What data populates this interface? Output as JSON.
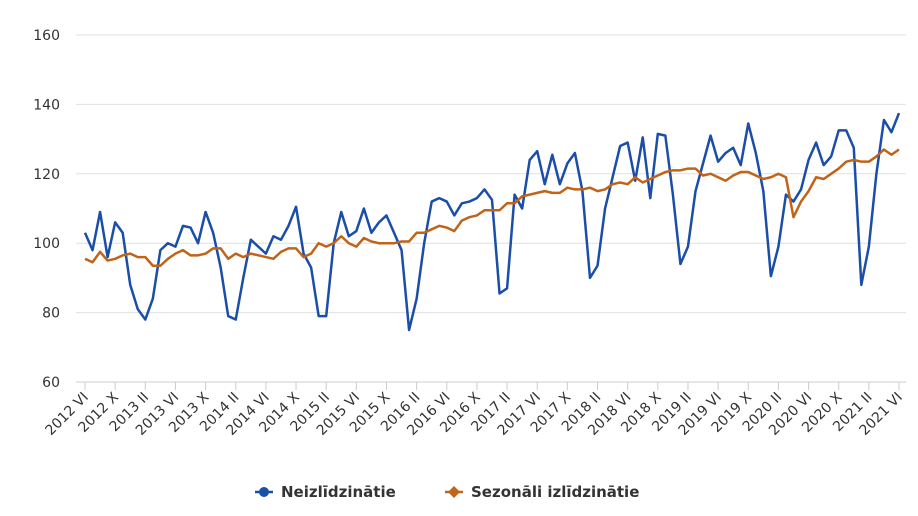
{
  "chart_data": {
    "type": "line",
    "categories": [
      "2012 VI",
      null,
      null,
      null,
      "2012 X",
      null,
      null,
      null,
      "2013 II",
      null,
      null,
      null,
      "2013 VI",
      null,
      null,
      null,
      "2013 X",
      null,
      null,
      null,
      "2014 II",
      null,
      null,
      null,
      "2014 VI",
      null,
      null,
      null,
      "2014 X",
      null,
      null,
      null,
      "2015 II",
      null,
      null,
      null,
      "2015 VI",
      null,
      null,
      null,
      "2015 X",
      null,
      null,
      null,
      "2016 II",
      null,
      null,
      null,
      "2016 VI",
      null,
      null,
      null,
      "2016 X",
      null,
      null,
      null,
      "2017 II",
      null,
      null,
      null,
      "2017 VI",
      null,
      null,
      null,
      "2017 X",
      null,
      null,
      null,
      "2018 II",
      null,
      null,
      null,
      "2018 VI",
      null,
      null,
      null,
      "2018 X",
      null,
      null,
      null,
      "2019 II",
      null,
      null,
      null,
      "2019 VI",
      null,
      null,
      null,
      "2019 X",
      null,
      null,
      null,
      "2020 II",
      null,
      null,
      null,
      "2020 VI",
      null,
      null,
      null,
      "2020 X",
      null,
      null,
      null,
      "2021 II",
      null,
      null,
      null,
      "2021 VI"
    ],
    "series": [
      {
        "name": "Neizlīdzinātie",
        "color": "#1a4ea8",
        "marker": "circle",
        "values": [
          103,
          98,
          109,
          96,
          106,
          103,
          88,
          81,
          78,
          84,
          98,
          100,
          99,
          105,
          104.5,
          100,
          109,
          103,
          93,
          79,
          78,
          90,
          101,
          99,
          97,
          102,
          101,
          105,
          110.5,
          97,
          93,
          79,
          79,
          100,
          109,
          102,
          103.5,
          110,
          103,
          106,
          108,
          103,
          98,
          75,
          84,
          100,
          112,
          113,
          112,
          108,
          111.5,
          112,
          113,
          115.5,
          112.5,
          85.5,
          87,
          114,
          110,
          124,
          126.5,
          117,
          125.5,
          117,
          123,
          126,
          115,
          90,
          93.5,
          110,
          119,
          128,
          129,
          118,
          130.5,
          113,
          131.5,
          131,
          114,
          94,
          99,
          115,
          123,
          131,
          123.5,
          126,
          127.5,
          122.5,
          134.5,
          126,
          115,
          90.5,
          99,
          114,
          112,
          115.5,
          124,
          129,
          122.5,
          125,
          132.5,
          132.5,
          127.5,
          88,
          99,
          120,
          135.5,
          132,
          137.5
        ]
      },
      {
        "name": "Sezonāli izlīdzinātie",
        "color": "#c0641a",
        "marker": "diamond",
        "values": [
          95.5,
          94.5,
          97.5,
          95,
          95.5,
          96.5,
          97,
          96,
          96,
          93.5,
          93.5,
          95.5,
          97,
          98,
          96.5,
          96.5,
          97,
          98.5,
          98.5,
          95.5,
          97,
          96,
          97,
          96.5,
          96,
          95.5,
          97.5,
          98.5,
          98.5,
          96,
          97,
          100,
          99,
          100,
          102,
          100,
          99,
          101.5,
          100.5,
          100,
          100,
          100,
          100.5,
          100.5,
          103,
          103,
          104,
          105,
          104.5,
          103.5,
          106.5,
          107.5,
          108,
          109.5,
          109.5,
          109.5,
          111.5,
          111.5,
          113.5,
          114,
          114.5,
          115,
          114.5,
          114.5,
          116,
          115.5,
          115.5,
          116,
          115,
          115.5,
          117,
          117.5,
          117,
          119,
          117.5,
          118.5,
          119.5,
          120.5,
          121,
          121,
          121.5,
          121.5,
          119.5,
          120,
          119,
          118,
          119.5,
          120.5,
          120.5,
          119.5,
          118.5,
          119,
          120,
          119,
          107.5,
          112,
          115,
          119,
          118.5,
          120,
          121.5,
          123.5,
          124,
          123.5,
          123.5,
          125,
          127,
          125.5,
          127
        ]
      }
    ],
    "ylim": [
      60,
      160
    ],
    "yticks": [
      60,
      80,
      100,
      120,
      140,
      160
    ],
    "grid": true,
    "legend": "bottom"
  }
}
